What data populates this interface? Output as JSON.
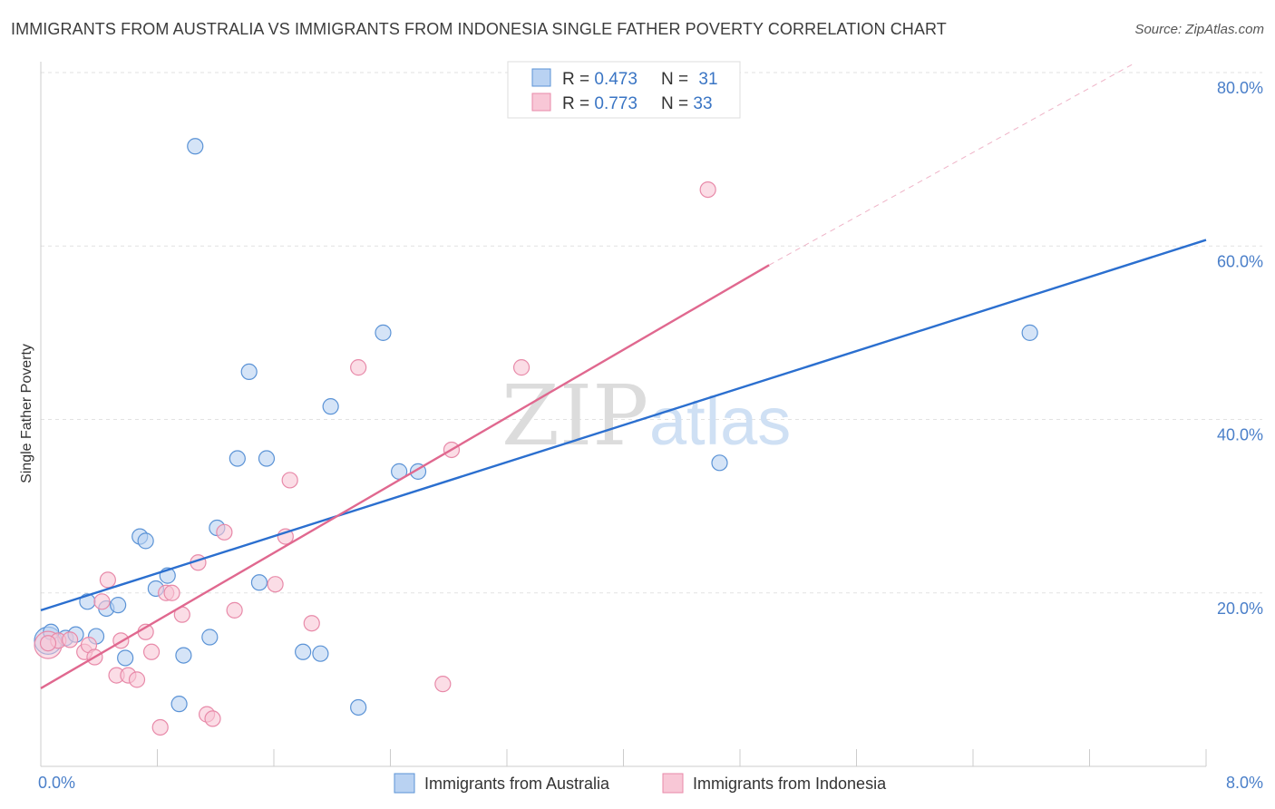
{
  "title": "IMMIGRANTS FROM AUSTRALIA VS IMMIGRANTS FROM INDONESIA SINGLE FATHER POVERTY CORRELATION CHART",
  "source": "Source: ZipAtlas.com",
  "watermark": {
    "zip": "ZIP",
    "atlas": "atlas"
  },
  "chart_data": {
    "type": "scatter",
    "ylabel": "Single Father Poverty",
    "xlabel": "",
    "xlim": [
      0,
      8
    ],
    "ylim": [
      0,
      80
    ],
    "x_tick_labels": [
      "0.0%",
      "8.0%"
    ],
    "y_ticks": [
      {
        "value": 20,
        "label": "20.0%"
      },
      {
        "value": 40,
        "label": "40.0%"
      },
      {
        "value": 60,
        "label": "60.0%"
      },
      {
        "value": 80,
        "label": "80.0%"
      }
    ],
    "grid": true,
    "legend": {
      "placement": "top-center",
      "rows": [
        {
          "r_label": "R = ",
          "r": "0.473",
          "n_label": "N = ",
          "n": "31"
        },
        {
          "r_label": "R = ",
          "r": "0.773",
          "n_label": "N = ",
          "n": "33"
        }
      ]
    },
    "series": [
      {
        "name": "Immigrants from Australia",
        "color": "#5b93d6",
        "fill": "#b9d2f2",
        "line_color": "#2b6fcf",
        "trend": {
          "x": [
            0.0,
            8.0
          ],
          "y": [
            18.0,
            60.7
          ]
        },
        "points": [
          {
            "x": 0.05,
            "y": 14.5,
            "big": true
          },
          {
            "x": 0.07,
            "y": 15.5
          },
          {
            "x": 0.17,
            "y": 14.8
          },
          {
            "x": 0.24,
            "y": 15.2
          },
          {
            "x": 0.32,
            "y": 19.0
          },
          {
            "x": 0.38,
            "y": 15.0
          },
          {
            "x": 0.45,
            "y": 18.2
          },
          {
            "x": 0.53,
            "y": 18.6
          },
          {
            "x": 0.58,
            "y": 12.5
          },
          {
            "x": 0.68,
            "y": 26.5
          },
          {
            "x": 0.72,
            "y": 26.0
          },
          {
            "x": 0.79,
            "y": 20.5
          },
          {
            "x": 0.87,
            "y": 22.0
          },
          {
            "x": 0.95,
            "y": 7.2
          },
          {
            "x": 0.98,
            "y": 12.8
          },
          {
            "x": 1.06,
            "y": 71.5
          },
          {
            "x": 1.16,
            "y": 14.9
          },
          {
            "x": 1.21,
            "y": 27.5
          },
          {
            "x": 1.35,
            "y": 35.5
          },
          {
            "x": 1.43,
            "y": 45.5
          },
          {
            "x": 1.5,
            "y": 21.2
          },
          {
            "x": 1.55,
            "y": 35.5
          },
          {
            "x": 1.8,
            "y": 13.2
          },
          {
            "x": 1.92,
            "y": 13.0
          },
          {
            "x": 1.99,
            "y": 41.5
          },
          {
            "x": 2.18,
            "y": 6.8
          },
          {
            "x": 2.35,
            "y": 50.0
          },
          {
            "x": 2.46,
            "y": 34.0
          },
          {
            "x": 2.59,
            "y": 34.0
          },
          {
            "x": 4.66,
            "y": 35.0
          },
          {
            "x": 6.79,
            "y": 50.0
          }
        ]
      },
      {
        "name": "Immigrants from Indonesia",
        "color": "#e88aa9",
        "fill": "#f8c7d6",
        "line_color": "#e0688f",
        "trend": {
          "x": [
            0.0,
            5.0
          ],
          "y": [
            9.0,
            57.8
          ]
        },
        "trend_dashed": {
          "x": [
            5.0,
            7.5
          ],
          "y": [
            57.8,
            81.0
          ]
        },
        "points": [
          {
            "x": 0.05,
            "y": 14.0,
            "big": true
          },
          {
            "x": 0.12,
            "y": 14.5
          },
          {
            "x": 0.2,
            "y": 14.6
          },
          {
            "x": 0.3,
            "y": 13.2
          },
          {
            "x": 0.33,
            "y": 14.0
          },
          {
            "x": 0.37,
            "y": 12.6
          },
          {
            "x": 0.42,
            "y": 19.0
          },
          {
            "x": 0.46,
            "y": 21.5
          },
          {
            "x": 0.52,
            "y": 10.5
          },
          {
            "x": 0.55,
            "y": 14.5
          },
          {
            "x": 0.6,
            "y": 10.5
          },
          {
            "x": 0.66,
            "y": 10.0
          },
          {
            "x": 0.72,
            "y": 15.5
          },
          {
            "x": 0.76,
            "y": 13.2
          },
          {
            "x": 0.82,
            "y": 4.5
          },
          {
            "x": 0.86,
            "y": 20.0
          },
          {
            "x": 0.9,
            "y": 20.0
          },
          {
            "x": 0.97,
            "y": 17.5
          },
          {
            "x": 1.08,
            "y": 23.5
          },
          {
            "x": 1.14,
            "y": 6.0
          },
          {
            "x": 1.18,
            "y": 5.5
          },
          {
            "x": 1.26,
            "y": 27.0
          },
          {
            "x": 1.33,
            "y": 18.0
          },
          {
            "x": 1.61,
            "y": 21.0
          },
          {
            "x": 1.68,
            "y": 26.5
          },
          {
            "x": 1.71,
            "y": 33.0
          },
          {
            "x": 1.86,
            "y": 16.5
          },
          {
            "x": 2.18,
            "y": 46.0
          },
          {
            "x": 2.76,
            "y": 9.5
          },
          {
            "x": 2.82,
            "y": 36.5
          },
          {
            "x": 3.3,
            "y": 46.0
          },
          {
            "x": 4.58,
            "y": 66.5
          },
          {
            "x": 0.05,
            "y": 14.2
          }
        ]
      }
    ]
  }
}
